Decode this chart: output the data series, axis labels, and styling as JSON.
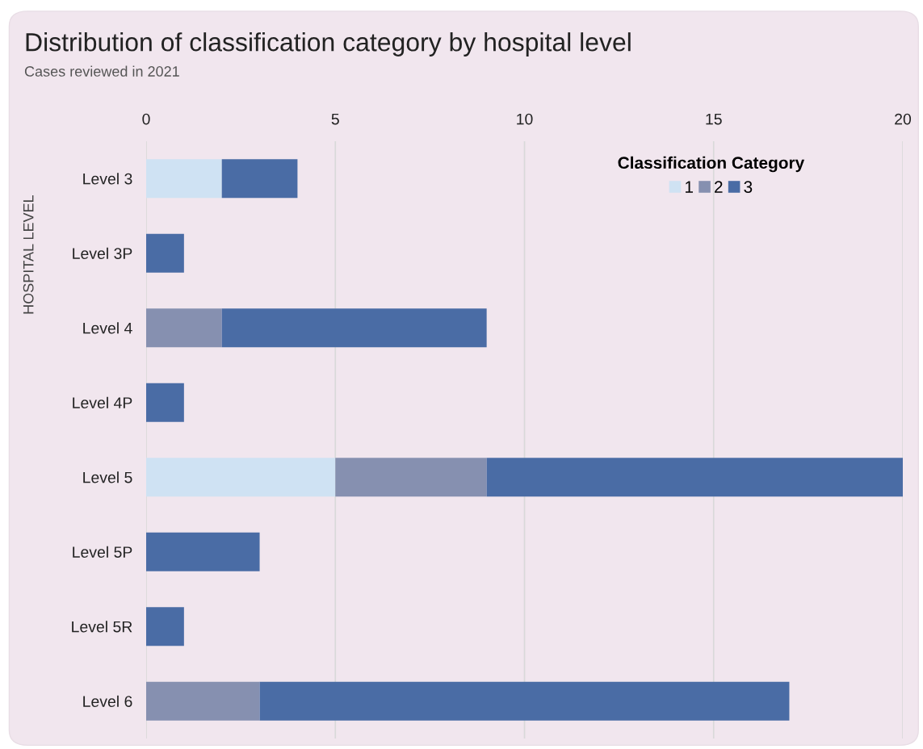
{
  "chart_data": {
    "type": "bar",
    "orientation": "horizontal",
    "stacked": true,
    "title": "Distribution of classification category by hospital level",
    "subtitle": "Cases reviewed in 2021",
    "ylabel": "HOSPITAL LEVEL",
    "legend_title": "Classification Category",
    "categories": [
      "Level 3",
      "Level 3P",
      "Level 4",
      "Level 4P",
      "Level 5",
      "Level 5P",
      "Level 5R",
      "Level 6"
    ],
    "series": [
      {
        "name": "1",
        "color": "#cfe2f3",
        "values": [
          2,
          0,
          0,
          0,
          5,
          0,
          0,
          0
        ]
      },
      {
        "name": "2",
        "color": "#8690b0",
        "values": [
          0,
          0,
          2,
          0,
          4,
          0,
          0,
          3
        ]
      },
      {
        "name": "3",
        "color": "#4a6ca5",
        "values": [
          2,
          1,
          7,
          1,
          11,
          3,
          1,
          14
        ]
      }
    ],
    "xlim": [
      0,
      20
    ],
    "xticks": [
      0,
      5,
      10,
      15,
      20
    ],
    "grid": "x",
    "legend": "top right"
  }
}
